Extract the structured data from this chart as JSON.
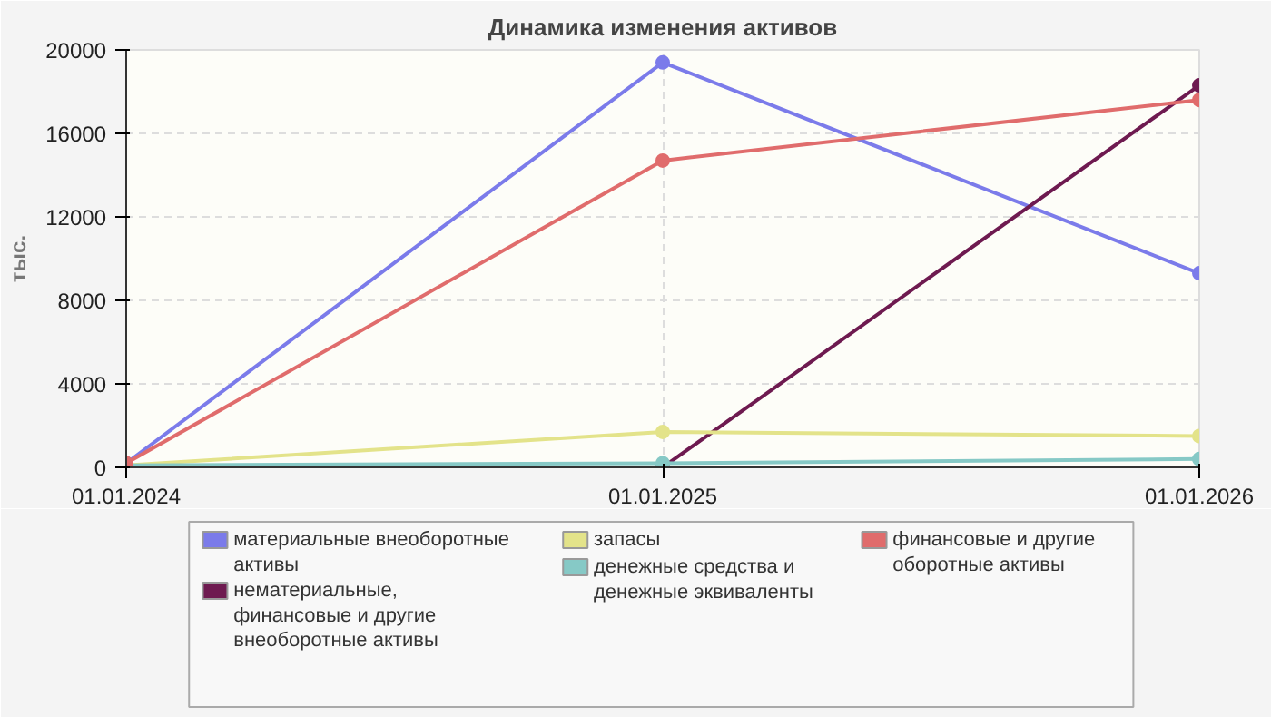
{
  "chart_data": {
    "type": "line",
    "title": "Динамика изменения активов",
    "ylabel": "тыс.",
    "categories": [
      "01.01.2024",
      "01.01.2025",
      "01.01.2026"
    ],
    "ylim": [
      0,
      20000
    ],
    "yticks": [
      0,
      4000,
      8000,
      12000,
      16000,
      20000
    ],
    "grid": true,
    "legend": "bottom",
    "marker": "circle",
    "line_style": "solid",
    "series": [
      {
        "name": "материальные внеоборотные активы",
        "color": "#7b7bea",
        "values": [
          200,
          19400,
          9300
        ]
      },
      {
        "name": "нематериальные, финансовые и другие внеоборотные активы",
        "color": "#6e1a50",
        "values": [
          0,
          0,
          18300
        ]
      },
      {
        "name": "запасы",
        "color": "#e3e38a",
        "values": [
          100,
          1700,
          1500
        ]
      },
      {
        "name": "денежные средства и денежные эквиваленты",
        "color": "#86c9c6",
        "values": [
          100,
          200,
          400
        ]
      },
      {
        "name": "финансовые и другие оборотные активы",
        "color": "#e06c6c",
        "values": [
          200,
          14700,
          17600
        ]
      }
    ]
  }
}
